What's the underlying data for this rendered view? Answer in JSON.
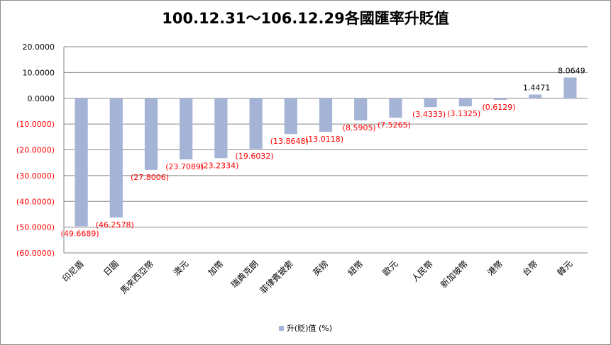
{
  "chart_data": {
    "type": "bar",
    "title": "100.12.31～106.12.29各國匯率升貶值",
    "categories": [
      "印尼盾",
      "日圓",
      "馬來西亞幣",
      "澳元",
      "加幣",
      "瑞典克朗",
      "菲律賓披索",
      "英鎊",
      "紐幣",
      "歐元",
      "人民幣",
      "新加坡幣",
      "港幣",
      "台幣",
      "韓元"
    ],
    "series": [
      {
        "name": "升(貶)值 (%)",
        "values": [
          -49.6689,
          -46.2578,
          -27.8006,
          -23.7089,
          -23.2334,
          -19.6032,
          -13.8648,
          -13.0118,
          -8.5905,
          -7.5265,
          -3.4333,
          -3.1325,
          -0.6129,
          1.4471,
          8.0649
        ],
        "data_labels": [
          "(49.6689)",
          "(46.2578)",
          "(27.8006)",
          "(23.7089)",
          "(23.2334)",
          "(19.6032)",
          "(13.8648)",
          "(13.0118)",
          "(8.5905)",
          "(7.5265)",
          "(3.4333)",
          "(3.1325)",
          "(0.6129)",
          "1.4471",
          "8.0649"
        ]
      }
    ],
    "ylim": [
      -60,
      20
    ],
    "yticks": [
      20,
      10,
      0,
      -10,
      -20,
      -30,
      -40,
      -50,
      -60
    ],
    "ytick_labels": [
      "20.0000",
      "10.0000",
      "0.0000",
      "(10.0000)",
      "(20.0000)",
      "(30.0000)",
      "(40.0000)",
      "(50.0000)",
      "(60.0000)"
    ],
    "grid": true,
    "legend_position": "bottom",
    "colors": {
      "bar": "#a5b4d6",
      "negative_label": "#ff0000",
      "positive_label": "#000000",
      "grid": "#868686"
    }
  }
}
